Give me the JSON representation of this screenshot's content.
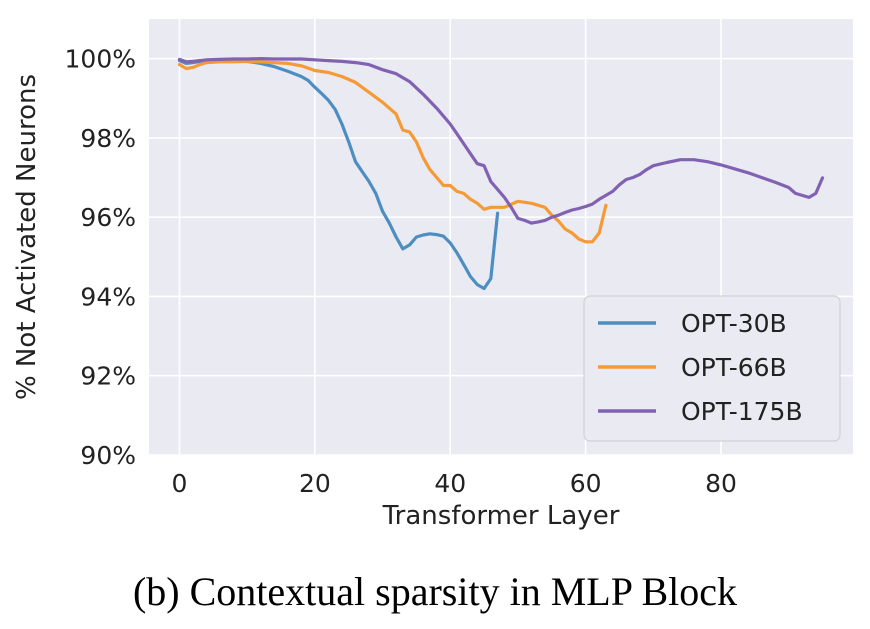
{
  "caption": "(b) Contextual sparsity in MLP Block",
  "chart_data": {
    "type": "line",
    "title": "",
    "xlabel": "Transformer Layer",
    "ylabel": "% Not Activated Neurons",
    "xlim": [
      -4.5,
      99.5
    ],
    "ylim": [
      90,
      101
    ],
    "xticks": [
      0,
      20,
      40,
      60,
      80
    ],
    "xtick_labels": [
      "0",
      "20",
      "40",
      "60",
      "80"
    ],
    "yticks": [
      90,
      92,
      94,
      96,
      98,
      100
    ],
    "ytick_labels": [
      "90%",
      "92%",
      "94%",
      "96%",
      "98%",
      "100%"
    ],
    "grid": true,
    "legend_position": "lower right",
    "background": "#eaeaf2",
    "series": [
      {
        "name": "OPT-30B",
        "color": "#4c8ec2",
        "points": [
          [
            0,
            99.95
          ],
          [
            1,
            99.88
          ],
          [
            2,
            99.9
          ],
          [
            4,
            99.95
          ],
          [
            6,
            99.97
          ],
          [
            8,
            99.96
          ],
          [
            10,
            99.93
          ],
          [
            12,
            99.88
          ],
          [
            14,
            99.8
          ],
          [
            16,
            99.68
          ],
          [
            18,
            99.55
          ],
          [
            19,
            99.45
          ],
          [
            20,
            99.28
          ],
          [
            21,
            99.12
          ],
          [
            22,
            98.95
          ],
          [
            23,
            98.72
          ],
          [
            24,
            98.35
          ],
          [
            25,
            97.9
          ],
          [
            26,
            97.4
          ],
          [
            27,
            97.15
          ],
          [
            28,
            96.9
          ],
          [
            29,
            96.6
          ],
          [
            30,
            96.15
          ],
          [
            31,
            95.85
          ],
          [
            32,
            95.5
          ],
          [
            33,
            95.2
          ],
          [
            34,
            95.3
          ],
          [
            35,
            95.5
          ],
          [
            36,
            95.55
          ],
          [
            37,
            95.58
          ],
          [
            38,
            95.56
          ],
          [
            39,
            95.52
          ],
          [
            40,
            95.35
          ],
          [
            41,
            95.1
          ],
          [
            42,
            94.8
          ],
          [
            43,
            94.5
          ],
          [
            44,
            94.3
          ],
          [
            45,
            94.2
          ],
          [
            46,
            94.45
          ],
          [
            47,
            96.1
          ]
        ]
      },
      {
        "name": "OPT-66B",
        "color": "#f59a35",
        "points": [
          [
            0,
            99.85
          ],
          [
            1,
            99.75
          ],
          [
            2,
            99.78
          ],
          [
            3,
            99.85
          ],
          [
            4,
            99.9
          ],
          [
            6,
            99.92
          ],
          [
            8,
            99.92
          ],
          [
            10,
            99.93
          ],
          [
            12,
            99.92
          ],
          [
            14,
            99.9
          ],
          [
            16,
            99.88
          ],
          [
            18,
            99.82
          ],
          [
            20,
            99.7
          ],
          [
            22,
            99.65
          ],
          [
            24,
            99.55
          ],
          [
            26,
            99.4
          ],
          [
            28,
            99.15
          ],
          [
            30,
            98.9
          ],
          [
            32,
            98.6
          ],
          [
            33,
            98.2
          ],
          [
            34,
            98.15
          ],
          [
            35,
            97.9
          ],
          [
            36,
            97.5
          ],
          [
            37,
            97.2
          ],
          [
            38,
            97.0
          ],
          [
            39,
            96.8
          ],
          [
            40,
            96.8
          ],
          [
            41,
            96.65
          ],
          [
            42,
            96.6
          ],
          [
            43,
            96.45
          ],
          [
            44,
            96.35
          ],
          [
            45,
            96.2
          ],
          [
            46,
            96.25
          ],
          [
            48,
            96.25
          ],
          [
            50,
            96.4
          ],
          [
            52,
            96.35
          ],
          [
            53,
            96.3
          ],
          [
            54,
            96.25
          ],
          [
            55,
            96.05
          ],
          [
            56,
            95.9
          ],
          [
            57,
            95.7
          ],
          [
            58,
            95.6
          ],
          [
            59,
            95.45
          ],
          [
            60,
            95.38
          ],
          [
            61,
            95.38
          ],
          [
            62,
            95.6
          ],
          [
            63,
            96.3
          ]
        ]
      },
      {
        "name": "OPT-175B",
        "color": "#8162b2",
        "points": [
          [
            0,
            99.98
          ],
          [
            1,
            99.92
          ],
          [
            2,
            99.93
          ],
          [
            4,
            99.97
          ],
          [
            6,
            99.98
          ],
          [
            8,
            99.99
          ],
          [
            10,
            99.99
          ],
          [
            12,
            100.0
          ],
          [
            14,
            99.99
          ],
          [
            16,
            99.99
          ],
          [
            18,
            99.99
          ],
          [
            20,
            99.97
          ],
          [
            22,
            99.95
          ],
          [
            24,
            99.93
          ],
          [
            26,
            99.9
          ],
          [
            28,
            99.85
          ],
          [
            30,
            99.72
          ],
          [
            32,
            99.62
          ],
          [
            34,
            99.42
          ],
          [
            36,
            99.1
          ],
          [
            38,
            98.75
          ],
          [
            40,
            98.35
          ],
          [
            41,
            98.1
          ],
          [
            42,
            97.85
          ],
          [
            43,
            97.6
          ],
          [
            44,
            97.35
          ],
          [
            45,
            97.3
          ],
          [
            46,
            96.9
          ],
          [
            47,
            96.7
          ],
          [
            48,
            96.5
          ],
          [
            49,
            96.25
          ],
          [
            50,
            95.97
          ],
          [
            51,
            95.92
          ],
          [
            52,
            95.85
          ],
          [
            53,
            95.88
          ],
          [
            54,
            95.92
          ],
          [
            55,
            96.0
          ],
          [
            56,
            96.05
          ],
          [
            57,
            96.12
          ],
          [
            58,
            96.18
          ],
          [
            59,
            96.22
          ],
          [
            60,
            96.27
          ],
          [
            61,
            96.33
          ],
          [
            62,
            96.45
          ],
          [
            63,
            96.55
          ],
          [
            64,
            96.65
          ],
          [
            65,
            96.82
          ],
          [
            66,
            96.95
          ],
          [
            67,
            97.0
          ],
          [
            68,
            97.08
          ],
          [
            69,
            97.2
          ],
          [
            70,
            97.3
          ],
          [
            72,
            97.38
          ],
          [
            74,
            97.45
          ],
          [
            76,
            97.45
          ],
          [
            78,
            97.4
          ],
          [
            80,
            97.32
          ],
          [
            82,
            97.22
          ],
          [
            84,
            97.12
          ],
          [
            86,
            97.0
          ],
          [
            88,
            96.88
          ],
          [
            90,
            96.75
          ],
          [
            91,
            96.6
          ],
          [
            92,
            96.55
          ],
          [
            93,
            96.5
          ],
          [
            94,
            96.6
          ],
          [
            95,
            96.99
          ]
        ]
      }
    ]
  }
}
